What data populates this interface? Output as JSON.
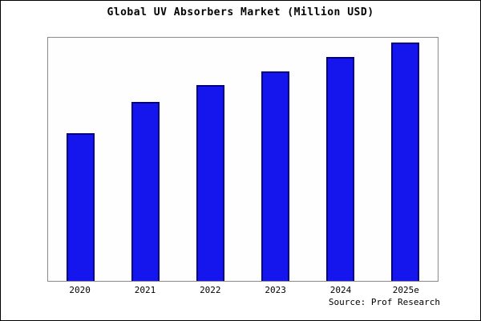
{
  "chart_data": {
    "type": "bar",
    "title": "Global UV Absorbers Market (Million USD)",
    "categories": [
      "2020",
      "2021",
      "2022",
      "2023",
      "2024",
      "2025e"
    ],
    "values": [
      62,
      75,
      82,
      88,
      94,
      100
    ],
    "xlabel": "",
    "ylabel": "",
    "ylim": [
      0,
      102
    ],
    "grid": false,
    "legend": "none",
    "bar_fill_color": "#1515ee",
    "bar_border_color": "#000080"
  },
  "source_text": "Source: Prof Research"
}
